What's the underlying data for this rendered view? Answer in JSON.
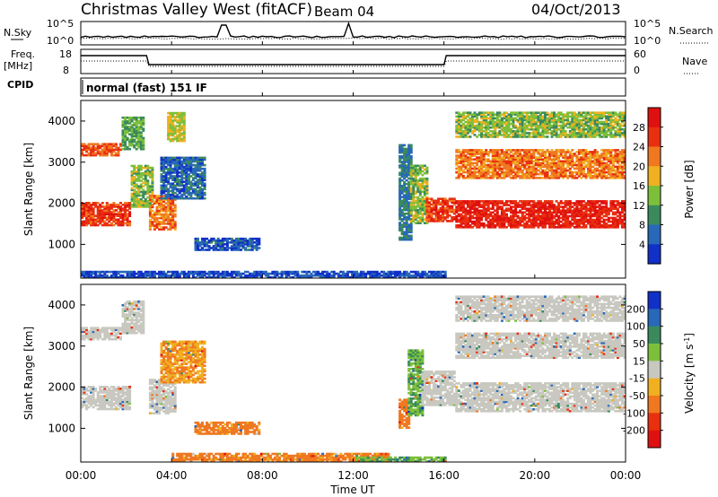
{
  "header": {
    "station": "Christmas Valley West (fitACF)",
    "beam": "Beam 04",
    "date": "04/Oct/2013"
  },
  "noise_panel": {
    "left_label": "N.Sky",
    "right_label": "N.Search",
    "left_ticks": [
      "10^5",
      "10^0"
    ],
    "right_ticks": [
      "10^5",
      "10^0"
    ]
  },
  "freq_panel": {
    "left_label": "Freq.",
    "left_unit": "[MHz]",
    "right_label": "Nave",
    "left_ticks": [
      "18",
      "8"
    ],
    "right_ticks": [
      "60",
      "0"
    ]
  },
  "cpid": {
    "label": "CPID",
    "mode": "normal (fast) 151 IF"
  },
  "x_axis": {
    "label": "Time UT",
    "ticks": [
      "00:00",
      "04:00",
      "08:00",
      "12:00",
      "16:00",
      "20:00",
      "00:00"
    ]
  },
  "chart_data": [
    {
      "type": "heatmap",
      "title": "",
      "xlabel": "Time UT",
      "ylabel": "Slant Range [km]",
      "xlim": [
        0,
        24
      ],
      "ylim": [
        180,
        4500
      ],
      "y_ticks": [
        1000,
        2000,
        3000,
        4000
      ],
      "colorbar": {
        "label": "Power [dB]",
        "ticks": [
          "4",
          "8",
          "12",
          "16",
          "20",
          "24",
          "28"
        ],
        "colors": [
          "#1030c8",
          "#2868b8",
          "#3a8a5e",
          "#7dbf3a",
          "#f0b020",
          "#f07820",
          "#e83010",
          "#e01010"
        ]
      },
      "regions": [
        {
          "t": [
            0.0,
            2.2
          ],
          "r": [
            1450,
            2000
          ],
          "level": 26
        },
        {
          "t": [
            2.2,
            3.2
          ],
          "r": [
            1900,
            2900
          ],
          "level": 14
        },
        {
          "t": [
            0.0,
            1.8
          ],
          "r": [
            3150,
            3450
          ],
          "level": 24
        },
        {
          "t": [
            1.8,
            2.8
          ],
          "r": [
            3300,
            4100
          ],
          "level": 12
        },
        {
          "t": [
            3.0,
            4.2
          ],
          "r": [
            1350,
            2200
          ],
          "level": 22
        },
        {
          "t": [
            3.5,
            5.4
          ],
          "r": [
            2100,
            3100
          ],
          "level": 6
        },
        {
          "t": [
            3.8,
            4.5
          ],
          "r": [
            3500,
            4200
          ],
          "level": 16
        },
        {
          "t": [
            5.0,
            7.8
          ],
          "r": [
            850,
            1150
          ],
          "level": 5
        },
        {
          "t": [
            14.0,
            14.5
          ],
          "r": [
            1100,
            3400
          ],
          "level": 8
        },
        {
          "t": [
            14.5,
            15.2
          ],
          "r": [
            1500,
            2900
          ],
          "level": 14
        },
        {
          "t": [
            15.2,
            16.5
          ],
          "r": [
            1550,
            2100
          ],
          "level": 26
        },
        {
          "t": [
            16.5,
            24.0
          ],
          "r": [
            1400,
            2050
          ],
          "level": 28
        },
        {
          "t": [
            16.5,
            24.0
          ],
          "r": [
            2600,
            3300
          ],
          "level": 22
        },
        {
          "t": [
            16.5,
            24.0
          ],
          "r": [
            3600,
            4200
          ],
          "level": 14
        },
        {
          "t": [
            0.0,
            16.0
          ],
          "r": [
            180,
            350
          ],
          "level": 4
        }
      ]
    },
    {
      "type": "heatmap",
      "title": "",
      "xlabel": "Time UT",
      "ylabel": "Slant Range [km]",
      "xlim": [
        0,
        24
      ],
      "ylim": [
        180,
        4500
      ],
      "y_ticks": [
        1000,
        2000,
        3000,
        4000
      ],
      "colorbar": {
        "label": "Velocity [m s^-1]",
        "ticks": [
          "200",
          "100",
          "50",
          "15",
          "-15",
          "-50",
          "-100",
          "-200"
        ],
        "colors": [
          "#1030c8",
          "#2868b8",
          "#3a8a5e",
          "#7dbf3a",
          "#c8c8c0",
          "#f0b020",
          "#f07820",
          "#e83010",
          "#e01010"
        ]
      },
      "regions": [
        {
          "t": [
            0.0,
            2.2
          ],
          "r": [
            1450,
            2000
          ],
          "level": 0
        },
        {
          "t": [
            0.0,
            1.8
          ],
          "r": [
            3150,
            3450
          ],
          "level": 0
        },
        {
          "t": [
            1.8,
            2.8
          ],
          "r": [
            3300,
            4100
          ],
          "level": 0
        },
        {
          "t": [
            3.0,
            4.2
          ],
          "r": [
            1350,
            2200
          ],
          "level": 0
        },
        {
          "t": [
            3.5,
            5.4
          ],
          "r": [
            2100,
            3100
          ],
          "level": -30
        },
        {
          "t": [
            5.0,
            7.8
          ],
          "r": [
            850,
            1150
          ],
          "level": -40
        },
        {
          "t": [
            14.0,
            14.4
          ],
          "r": [
            1000,
            1700
          ],
          "level": -60
        },
        {
          "t": [
            14.4,
            15.0
          ],
          "r": [
            1300,
            2900
          ],
          "level": 30
        },
        {
          "t": [
            15.0,
            16.5
          ],
          "r": [
            1550,
            2400
          ],
          "level": 0
        },
        {
          "t": [
            16.5,
            24.0
          ],
          "r": [
            1400,
            2100
          ],
          "level": 0
        },
        {
          "t": [
            16.5,
            24.0
          ],
          "r": [
            2700,
            3300
          ],
          "level": 0
        },
        {
          "t": [
            16.5,
            24.0
          ],
          "r": [
            3600,
            4200
          ],
          "level": 0
        },
        {
          "t": [
            4.0,
            13.5
          ],
          "r": [
            180,
            400
          ],
          "level": -40
        },
        {
          "t": [
            12.0,
            16.0
          ],
          "r": [
            180,
            300
          ],
          "level": 30
        }
      ]
    }
  ]
}
